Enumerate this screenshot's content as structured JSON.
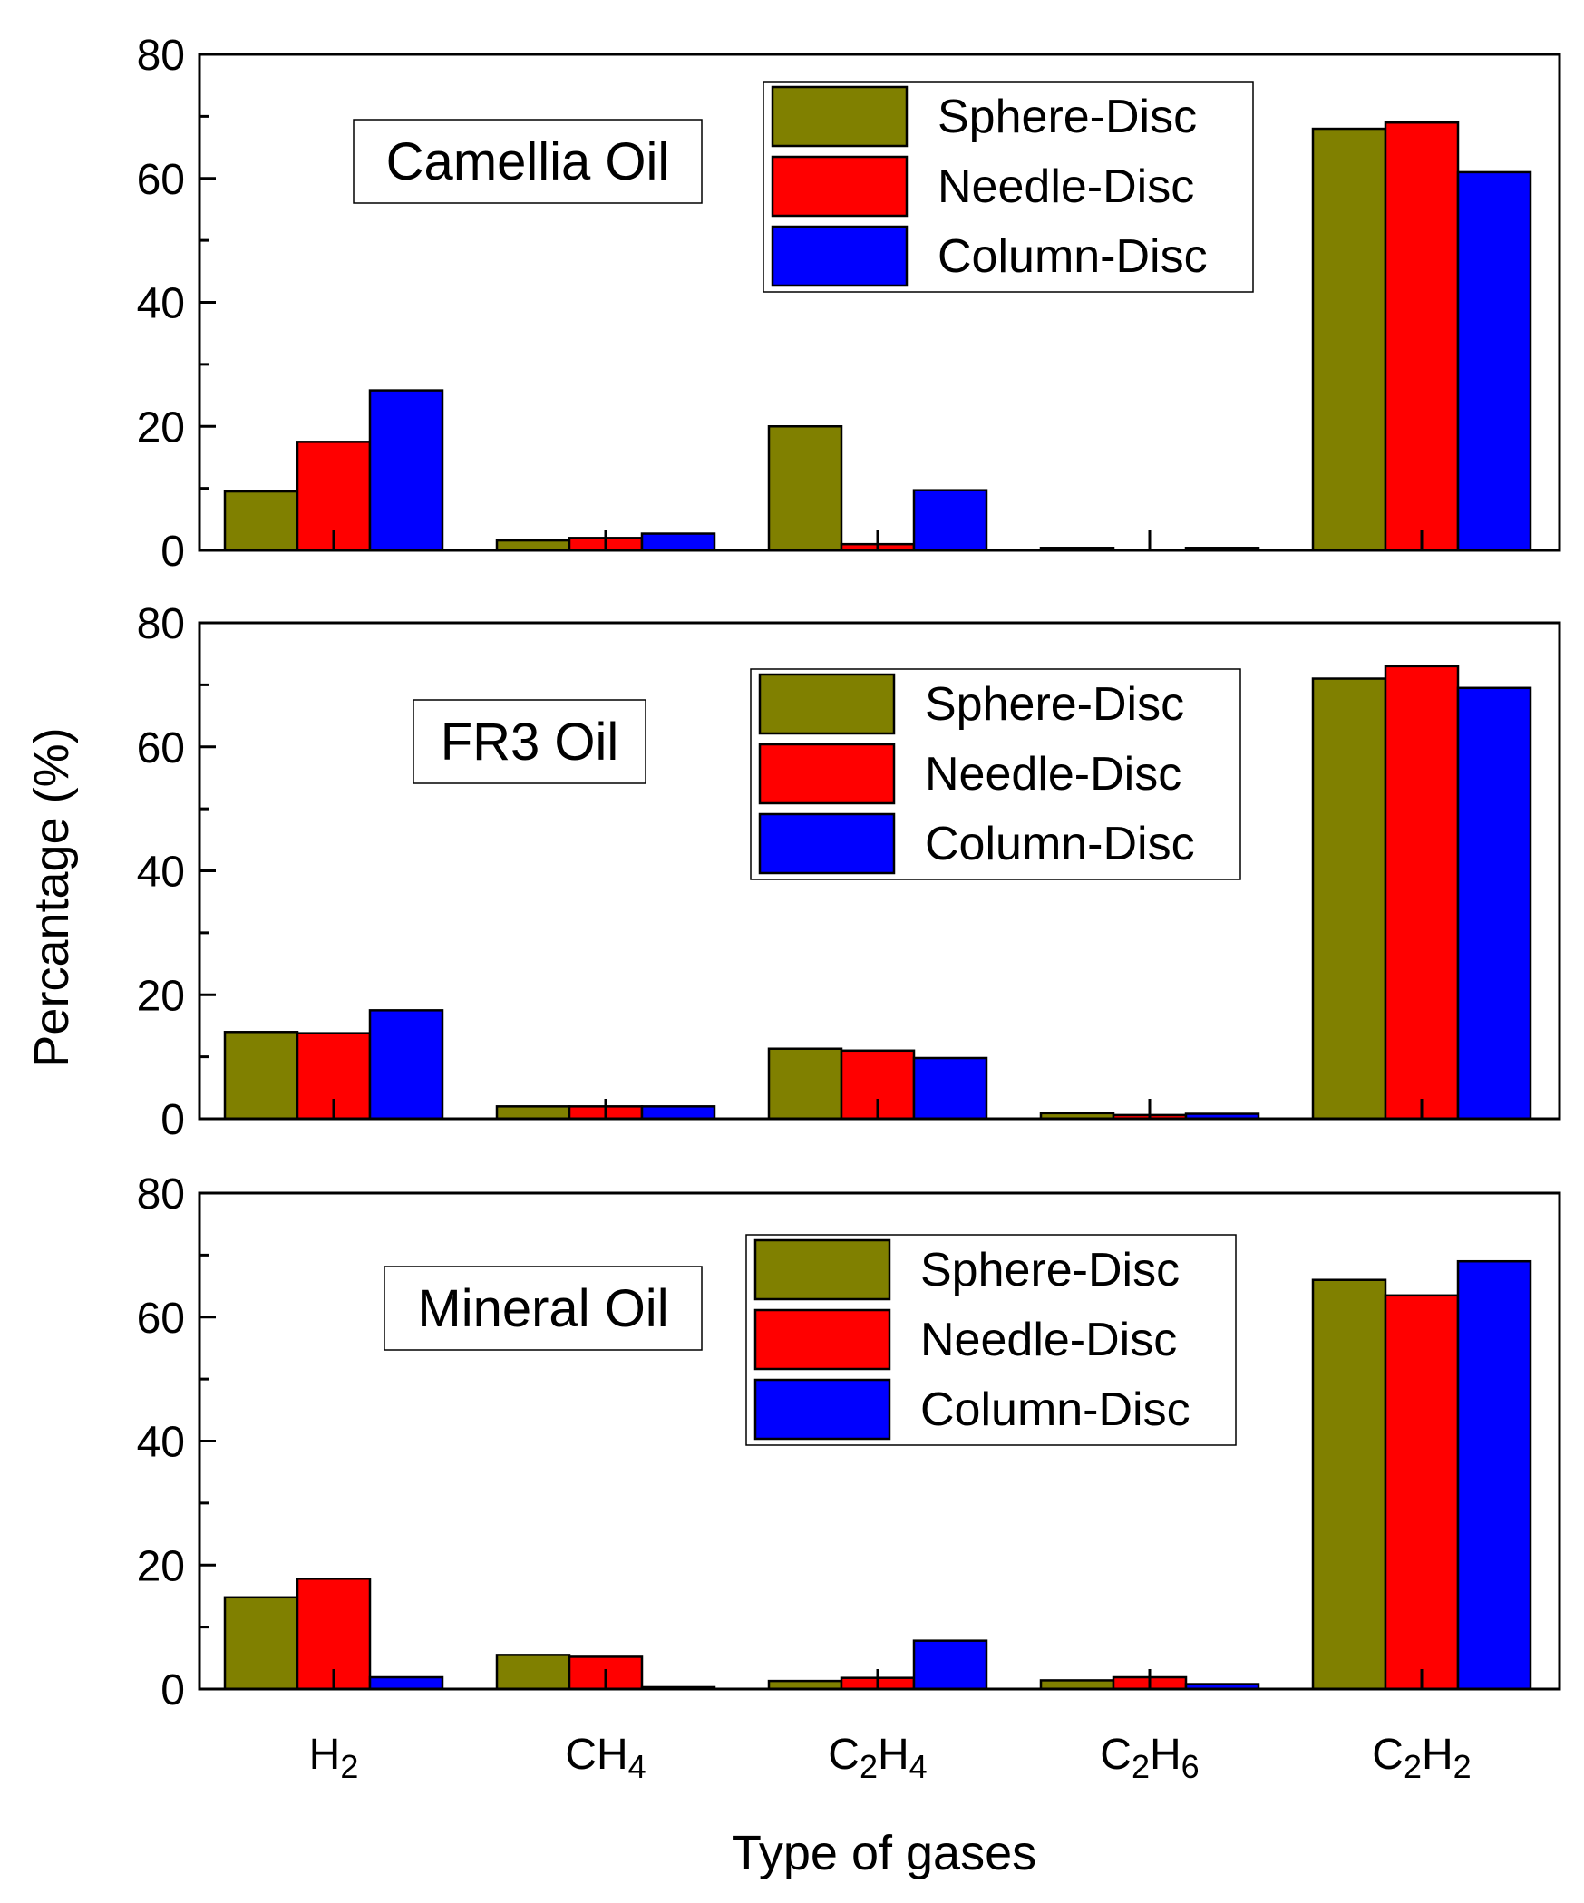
{
  "chart_data": {
    "type": "bar",
    "xlabel": "Type of gases",
    "ylabel": "Percantage (%)",
    "categories": [
      {
        "base": "H",
        "sub": "2",
        "rest": ""
      },
      {
        "base": "CH",
        "sub": "4",
        "rest": ""
      },
      {
        "base": "C",
        "sub": "2",
        "rest": "H",
        "sub2": "4"
      },
      {
        "base": "C",
        "sub": "2",
        "rest": "H",
        "sub2": "6"
      },
      {
        "base": "C",
        "sub": "2",
        "rest": "H",
        "sub2": "2"
      }
    ],
    "ylim": [
      0,
      80
    ],
    "yticks": [
      0,
      20,
      40,
      60,
      80
    ],
    "legend_position": "top-right",
    "colors": {
      "Sphere-Disc": "#808000",
      "Needle-Disc": "#ff0000",
      "Column-Disc": "#0000ff"
    },
    "panels": [
      {
        "label": "Camellia Oil",
        "series": [
          {
            "name": "Sphere-Disc",
            "values": [
              9.5,
              1.6,
              20,
              0.4,
              68
            ]
          },
          {
            "name": "Needle-Disc",
            "values": [
              17.5,
              2.0,
              1.0,
              0.1,
              69
            ]
          },
          {
            "name": "Column-Disc",
            "values": [
              25.8,
              2.7,
              9.7,
              0.4,
              61
            ]
          }
        ]
      },
      {
        "label": "FR3 Oil",
        "series": [
          {
            "name": "Sphere-Disc",
            "values": [
              14,
              2.0,
              11.3,
              0.9,
              71
            ]
          },
          {
            "name": "Needle-Disc",
            "values": [
              13.8,
              2.0,
              11,
              0.6,
              73
            ]
          },
          {
            "name": "Column-Disc",
            "values": [
              17.5,
              2.0,
              9.8,
              0.8,
              69.5
            ]
          }
        ]
      },
      {
        "label": "Mineral Oil",
        "series": [
          {
            "name": "Sphere-Disc",
            "values": [
              14.8,
              5.5,
              1.3,
              1.4,
              66
            ]
          },
          {
            "name": "Needle-Disc",
            "values": [
              17.8,
              5.2,
              1.8,
              1.9,
              63.5
            ]
          },
          {
            "name": "Column-Disc",
            "values": [
              1.9,
              0.3,
              7.8,
              0.8,
              69
            ]
          }
        ]
      }
    ]
  }
}
